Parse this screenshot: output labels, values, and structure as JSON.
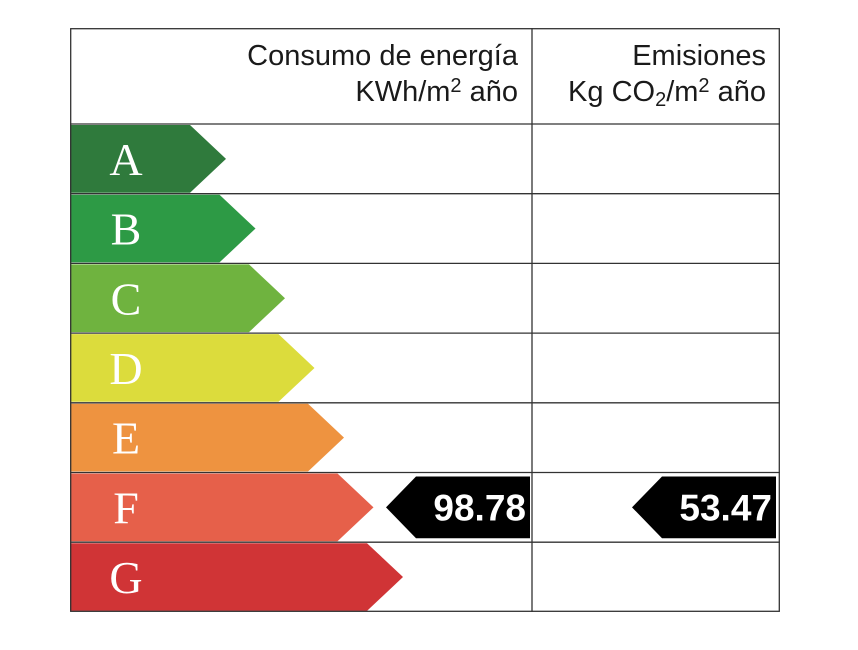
{
  "header": {
    "consumo": {
      "line1": "Consumo de energía",
      "line2_pre": "KWh/m",
      "line2_sup": "2",
      "line2_post": " año"
    },
    "emisiones": {
      "line1": "Emisiones",
      "line2_pre": "Kg CO",
      "line2_sub": "2",
      "line2_mid": "/m",
      "line2_sup": "2",
      "line2_post": " año"
    }
  },
  "chart_data": {
    "type": "table",
    "title": "",
    "columns": [
      "Consumo de energía KWh/m2 año",
      "Emisiones Kg CO2/m2 año"
    ],
    "classes": [
      {
        "letter": "A",
        "color": "#2f7a3c"
      },
      {
        "letter": "B",
        "color": "#2d9a45"
      },
      {
        "letter": "C",
        "color": "#6fb33f"
      },
      {
        "letter": "D",
        "color": "#dcdc3c"
      },
      {
        "letter": "E",
        "color": "#ee9340"
      },
      {
        "letter": "F",
        "color": "#e6604a"
      },
      {
        "letter": "G",
        "color": "#d03436"
      }
    ],
    "consumo": {
      "class": "F",
      "value": "98.78"
    },
    "emisiones": {
      "class": "F",
      "value": "53.47"
    }
  }
}
